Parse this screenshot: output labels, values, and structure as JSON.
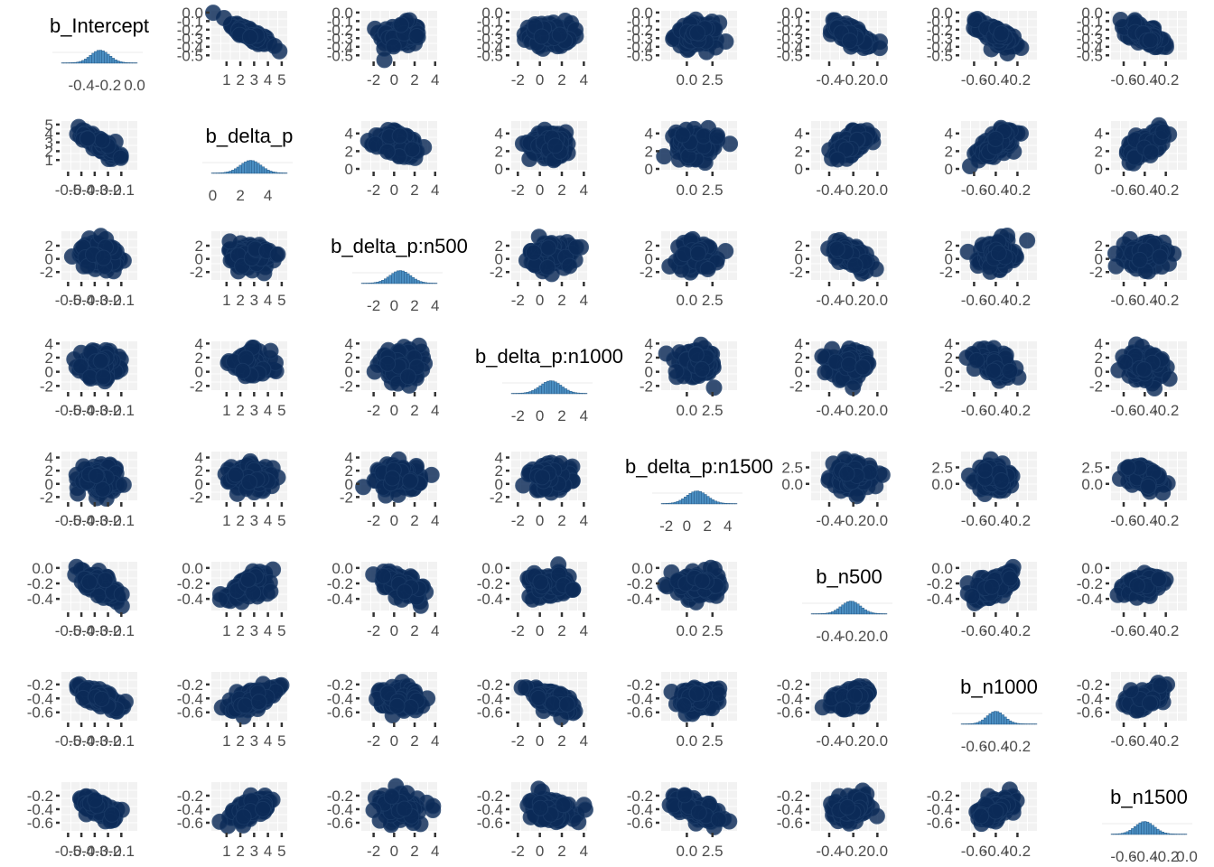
{
  "chart_data": {
    "type": "scatter-matrix",
    "parameters": [
      "b_Intercept",
      "b_delta_p",
      "b_delta_p:n500",
      "b_delta_p:n1000",
      "b_delta_p:n1500",
      "b_n500",
      "b_n1000",
      "b_n1500"
    ],
    "diagonal": {
      "type": "histogram"
    },
    "off_diagonal": {
      "type": "scatter"
    },
    "colors": {
      "points": "#0b2a57",
      "point_edge": "#1a3a66",
      "histogram": "#4a8ec2",
      "histogram_edge": "#1f4f7a",
      "grid": "#ebebeb",
      "ticks": "#333333",
      "text": "#4d4d4d"
    },
    "axes": {
      "b_Intercept": {
        "range": [
          -0.55,
          0.02
        ],
        "x_ticks": [
          "-0.4",
          "-0.2",
          "0.0"
        ],
        "x_tick_values": [
          -0.4,
          -0.2,
          0.0
        ],
        "x_ticks_dense": [
          "-0.5",
          "-0.4",
          "-0.3",
          "-0.2",
          "-0.1"
        ],
        "x_tick_values_dense": [
          -0.5,
          -0.4,
          -0.3,
          -0.2,
          -0.1
        ],
        "y_ticks": [
          "0.0",
          "-0.1",
          "-0.2",
          "-0.3",
          "-0.4",
          "-0.5"
        ],
        "y_tick_values": [
          0.0,
          -0.1,
          -0.2,
          -0.3,
          -0.4,
          -0.5
        ]
      },
      "b_delta_p": {
        "range": [
          -0.1,
          5.4
        ],
        "x_ticks": [
          "0",
          "2",
          "4"
        ],
        "x_tick_values": [
          0,
          2,
          4
        ],
        "x_ticks_dense": [
          "1",
          "2",
          "3",
          "4",
          "5"
        ],
        "x_tick_values_dense": [
          1,
          2,
          3,
          4,
          5
        ],
        "y_ticks": [
          "5",
          "4",
          "3",
          "2",
          "1"
        ],
        "y_tick_values": [
          5,
          4,
          3,
          2,
          1
        ],
        "y_ticks_alt": [
          "4",
          "2",
          "0"
        ],
        "y_tick_values_alt": [
          4,
          2,
          0
        ]
      },
      "b_delta_p:n500": {
        "range": [
          -3.2,
          4.2
        ],
        "x_ticks": [
          "-2",
          "0",
          "2",
          "4"
        ],
        "x_tick_values": [
          -2,
          0,
          2,
          4
        ],
        "y_ticks": [
          "4",
          "2",
          "0",
          "-2"
        ],
        "y_tick_values": [
          4,
          2,
          0,
          -2
        ],
        "y_ticks_alt": [
          "2",
          "0",
          "-2"
        ],
        "y_tick_values_alt": [
          2,
          0,
          -2
        ]
      },
      "b_delta_p:n1000": {
        "range": [
          -2.6,
          4.3
        ],
        "x_ticks": [
          "-2",
          "0",
          "2",
          "4"
        ],
        "x_tick_values": [
          -2,
          0,
          2,
          4
        ],
        "y_ticks": [
          "4",
          "2",
          "0",
          "-2"
        ],
        "y_tick_values": [
          4,
          2,
          0,
          -2
        ]
      },
      "b_delta_p:n1500": {
        "range": [
          -2.5,
          4.9
        ],
        "x_ticks": [
          "-2",
          "0",
          "2",
          "4"
        ],
        "x_tick_values": [
          -2,
          0,
          2,
          4
        ],
        "x_ticks_alt": [
          "0.0",
          "2.5"
        ],
        "x_tick_values_alt": [
          0.0,
          2.5
        ],
        "y_ticks": [
          "4",
          "2",
          "0",
          "-2"
        ],
        "y_tick_values": [
          4,
          2,
          0,
          -2
        ],
        "y_ticks_alt": [
          "2.5",
          "0.0"
        ],
        "y_tick_values_alt": [
          2.5,
          0.0
        ]
      },
      "b_n500": {
        "range": [
          -0.55,
          0.08
        ],
        "x_ticks": [
          "-0.4",
          "-0.2",
          "0.0"
        ],
        "x_tick_values": [
          -0.4,
          -0.2,
          0.0
        ],
        "y_ticks": [
          "0.0",
          "-0.2",
          "-0.4"
        ],
        "y_tick_values": [
          0.0,
          -0.2,
          -0.4
        ]
      },
      "b_n1000": {
        "range": [
          -0.72,
          -0.02
        ],
        "x_ticks": [
          "-0.6",
          "-0.4",
          "-0.2"
        ],
        "x_tick_values": [
          -0.6,
          -0.4,
          -0.2
        ],
        "y_ticks": [
          "-0.2",
          "-0.4",
          "-0.6"
        ],
        "y_tick_values": [
          -0.2,
          -0.4,
          -0.6
        ]
      },
      "b_n1500": {
        "range": [
          -0.72,
          0.0
        ],
        "x_ticks": [
          "-0.6",
          "-0.4",
          "-0.2"
        ],
        "x_tick_values": [
          -0.6,
          -0.4,
          -0.2
        ],
        "x_ticks_dense": [
          "-0.6",
          "-0.4",
          "-0.2",
          "0.0"
        ],
        "x_tick_values_dense": [
          -0.6,
          -0.4,
          -0.2,
          0.0
        ],
        "y_ticks": [
          "-0.2",
          "-0.4",
          "-0.6"
        ],
        "y_tick_values": [
          -0.2,
          -0.4,
          -0.6
        ]
      }
    },
    "posterior_summary": {
      "means": [
        -0.26,
        2.75,
        0.6,
        1.0,
        1.0,
        -0.22,
        -0.4,
        -0.4
      ],
      "sds": [
        0.07,
        0.75,
        1.0,
        0.95,
        1.0,
        0.08,
        0.08,
        0.09
      ]
    },
    "correlations": [
      [
        1.0,
        -0.85,
        0.0,
        0.0,
        0.0,
        -0.7,
        -0.7,
        -0.7
      ],
      [
        -0.85,
        1.0,
        -0.1,
        -0.1,
        -0.1,
        0.6,
        0.6,
        0.6
      ],
      [
        0.0,
        -0.1,
        1.0,
        0.0,
        0.0,
        -0.55,
        0.0,
        0.0
      ],
      [
        0.0,
        -0.1,
        0.0,
        1.0,
        0.0,
        0.0,
        -0.55,
        0.0
      ],
      [
        0.0,
        -0.1,
        0.0,
        0.0,
        1.0,
        0.0,
        0.0,
        -0.55
      ],
      [
        -0.7,
        0.6,
        -0.55,
        0.0,
        0.0,
        1.0,
        0.5,
        0.5
      ],
      [
        -0.7,
        0.6,
        0.0,
        -0.55,
        0.0,
        0.5,
        1.0,
        0.5
      ],
      [
        -0.7,
        0.6,
        0.0,
        0.0,
        -0.55,
        0.5,
        0.5,
        1.0
      ]
    ]
  }
}
